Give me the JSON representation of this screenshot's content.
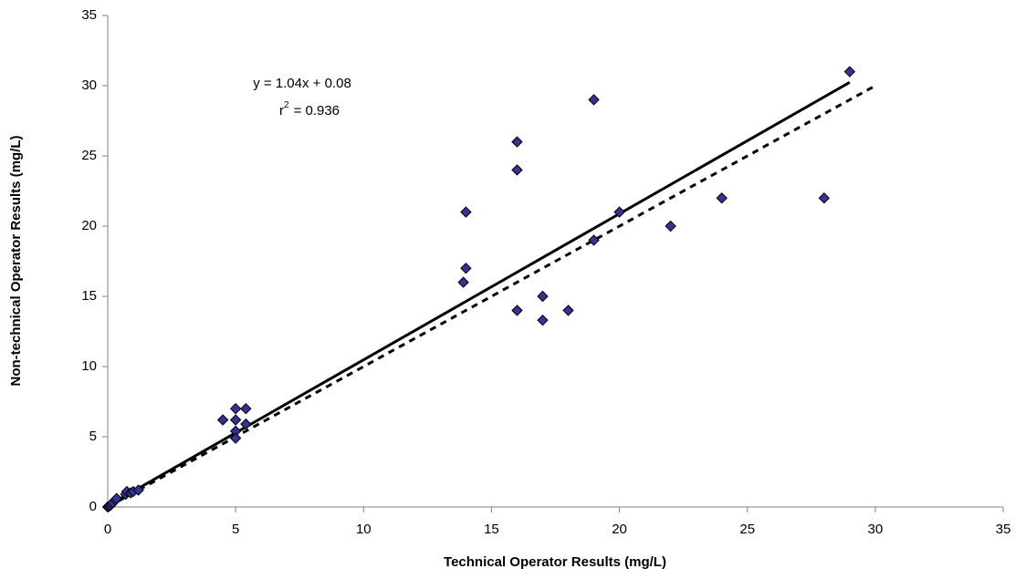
{
  "chart_data": {
    "type": "scatter",
    "x_label": "Technical Operator Results (mg/L)",
    "y_label": "Non-technical Operator Results (mg/L)",
    "xlim": [
      0,
      35
    ],
    "ylim": [
      0,
      35
    ],
    "xticks": [
      0,
      5,
      10,
      15,
      20,
      25,
      30,
      35
    ],
    "yticks": [
      0,
      5,
      10,
      15,
      20,
      25,
      30,
      35
    ],
    "grid": false,
    "series": [
      {
        "type": "scatter",
        "color": "#333399",
        "x": [
          0,
          0.05,
          0.1,
          0.15,
          0.2,
          0.3,
          0.35,
          0.7,
          0.75,
          0.9,
          1.0,
          1.2,
          4.5,
          5,
          5,
          5,
          5,
          5.4,
          5.4,
          13.9,
          14,
          14,
          16,
          16,
          16,
          17,
          17,
          18,
          19,
          19,
          20,
          22,
          24,
          28,
          29
        ],
        "values": [
          0,
          0.05,
          0.1,
          0.2,
          0.3,
          0.5,
          0.6,
          0.9,
          1.1,
          1.0,
          1.1,
          1.2,
          6.2,
          6.2,
          7,
          5.4,
          4.9,
          7,
          5.9,
          16,
          21,
          17,
          26,
          24,
          14,
          15,
          13.3,
          14,
          29,
          19,
          21,
          20,
          22,
          22,
          31
        ]
      },
      {
        "type": "line",
        "color": "#000000",
        "dash": false,
        "x": [
          0,
          29
        ],
        "values": [
          0.08,
          30.24
        ]
      },
      {
        "type": "line",
        "color": "#000000",
        "dash": true,
        "x": [
          0,
          30
        ],
        "values": [
          0,
          30
        ]
      }
    ],
    "annotations": [
      {
        "text": "y = 1.04x + 0.08"
      },
      {
        "symbol": "r",
        "superscript": "2",
        "text": "= 0.936"
      }
    ]
  }
}
